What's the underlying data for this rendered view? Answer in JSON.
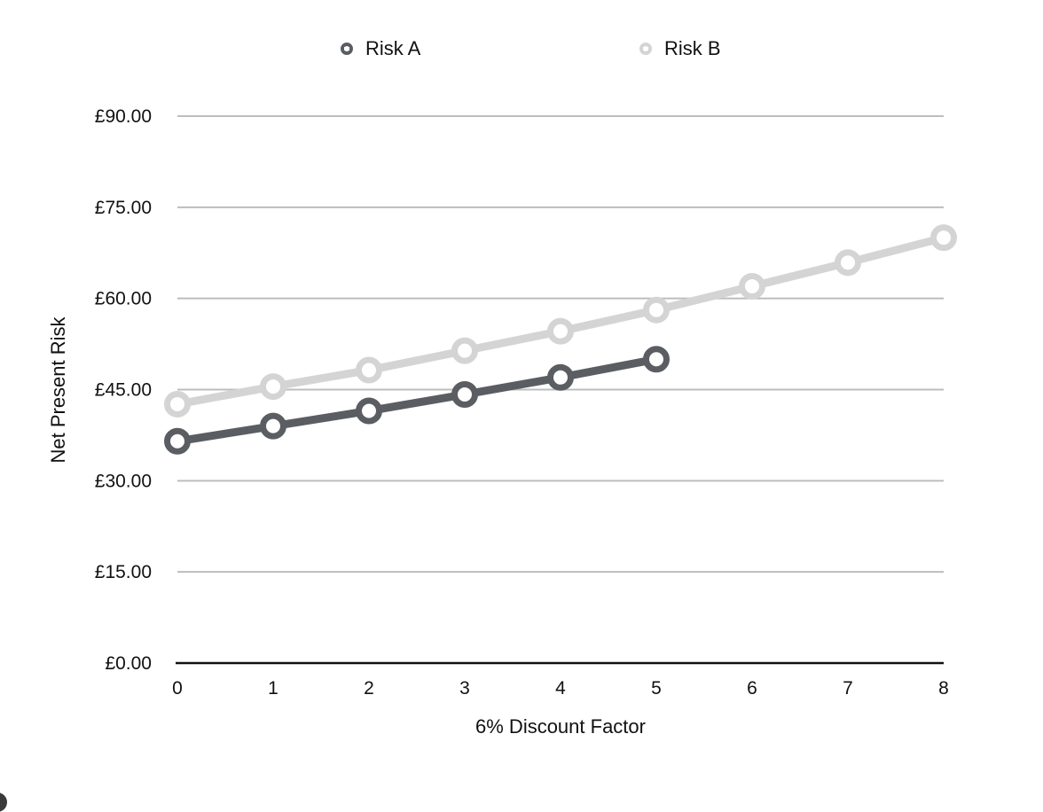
{
  "chart_data": {
    "type": "line",
    "title": "",
    "xlabel": "6% Discount Factor",
    "ylabel": "Net Present Risk",
    "x": [
      0,
      1,
      2,
      3,
      4,
      5,
      6,
      7,
      8
    ],
    "x_tick_labels": [
      "0",
      "1",
      "2",
      "3",
      "4",
      "5",
      "6",
      "7",
      "8"
    ],
    "y_tick_labels": [
      "£0.00",
      "£15.00",
      "£30.00",
      "£45.00",
      "£60.00",
      "£75.00",
      "£90.00"
    ],
    "y_ticks": [
      0,
      15,
      30,
      45,
      60,
      75,
      90
    ],
    "xlim": [
      0,
      8
    ],
    "ylim": [
      0,
      90
    ],
    "grid": true,
    "legend_placement": "top",
    "series": [
      {
        "name": "Risk A",
        "color": "#5a5d62",
        "x": [
          0,
          1,
          2,
          3,
          4,
          5
        ],
        "values": [
          36.5,
          39.0,
          41.5,
          44.2,
          47.0,
          50.0
        ]
      },
      {
        "name": "Risk B",
        "color": "#d4d4d4",
        "x": [
          0,
          1,
          2,
          3,
          4,
          5,
          6,
          7,
          8
        ],
        "values": [
          42.6,
          45.5,
          48.2,
          51.4,
          54.6,
          58.1,
          62.0,
          65.9,
          70.0
        ]
      }
    ]
  }
}
